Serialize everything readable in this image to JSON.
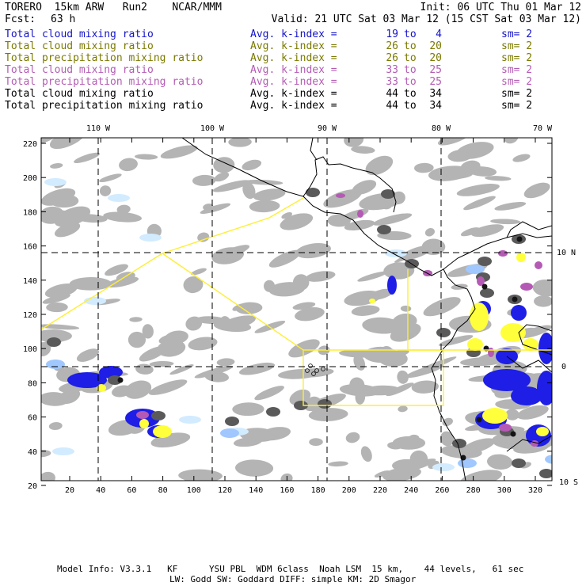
{
  "header": {
    "model": "TORERO  15km ARW   Run2    NCAR/MMM",
    "init": "Init: 06 UTC Thu 01 Mar 12",
    "fcst_label": "Fcst:",
    "fcst_value": "63 h",
    "valid": "Valid: 21 UTC Sat 03 Mar 12 (15 CST Sat 03 Mar 12)"
  },
  "legend": [
    {
      "name": "Total cloud mixing ratio",
      "avg": "Avg. k-index =",
      "k1": "19",
      "to": "to",
      "k2": "4",
      "sm": "sm= 2",
      "color": "#1414c8"
    },
    {
      "name": "Total cloud mixing ratio",
      "avg": "Avg. k-index =",
      "k1": "26",
      "to": "to",
      "k2": "20",
      "sm": "sm= 2",
      "color": "#7a7a00"
    },
    {
      "name": "Total precipitation mixing ratio",
      "avg": "Avg. k-index =",
      "k1": "26",
      "to": "to",
      "k2": "20",
      "sm": "sm= 2",
      "color": "#7a7a00"
    },
    {
      "name": "Total cloud mixing ratio",
      "avg": "Avg. k-index =",
      "k1": "33",
      "to": "to",
      "k2": "25",
      "sm": "sm= 2",
      "color": "#b45cb4"
    },
    {
      "name": "Total precipitation mixing ratio",
      "avg": "Avg. k-index =",
      "k1": "33",
      "to": "to",
      "k2": "25",
      "sm": "sm= 2",
      "color": "#b45cb4"
    },
    {
      "name": "Total cloud mixing ratio",
      "avg": "Avg. k-index =",
      "k1": "44",
      "to": "to",
      "k2": "34",
      "sm": "sm= 2",
      "color": "#000000"
    },
    {
      "name": "Total precipitation mixing ratio",
      "avg": "Avg. k-index =",
      "k1": "44",
      "to": "to",
      "k2": "34",
      "sm": "sm= 2",
      "color": "#000000"
    }
  ],
  "map": {
    "top_labels": [
      "110 W",
      "100 W",
      "90 W",
      "80 W",
      "70 W"
    ],
    "right_labels": [
      "10 N",
      "0",
      "10 S"
    ],
    "y_labels": [
      "220",
      "200",
      "180",
      "160",
      "140",
      "120",
      "100",
      "80",
      "60",
      "40",
      "20"
    ],
    "x_labels": [
      "20",
      "40",
      "60",
      "80",
      "100",
      "120",
      "140",
      "160",
      "180",
      "200",
      "220",
      "240",
      "260",
      "280",
      "300",
      "320"
    ],
    "colors": {
      "light_gray": "#b4b4b4",
      "dark_gray": "#5a5a5a",
      "black_core": "#141414",
      "blue": "#1e1ee6",
      "light_blue": "#a0c8ff",
      "pale_blue": "#d2ebff",
      "yellow": "#ffff3c",
      "purple": "#b45ab4",
      "yellow_line": "#ffee33"
    }
  },
  "footer": {
    "line1": "Model Info: V3.3.1   KF      YSU PBL  WDM 6class  Noah LSM  15 km,    44 levels,   61 sec",
    "line2": "LW: Godd SW: Goddard DIFF: simple KM: 2D Smagor"
  }
}
